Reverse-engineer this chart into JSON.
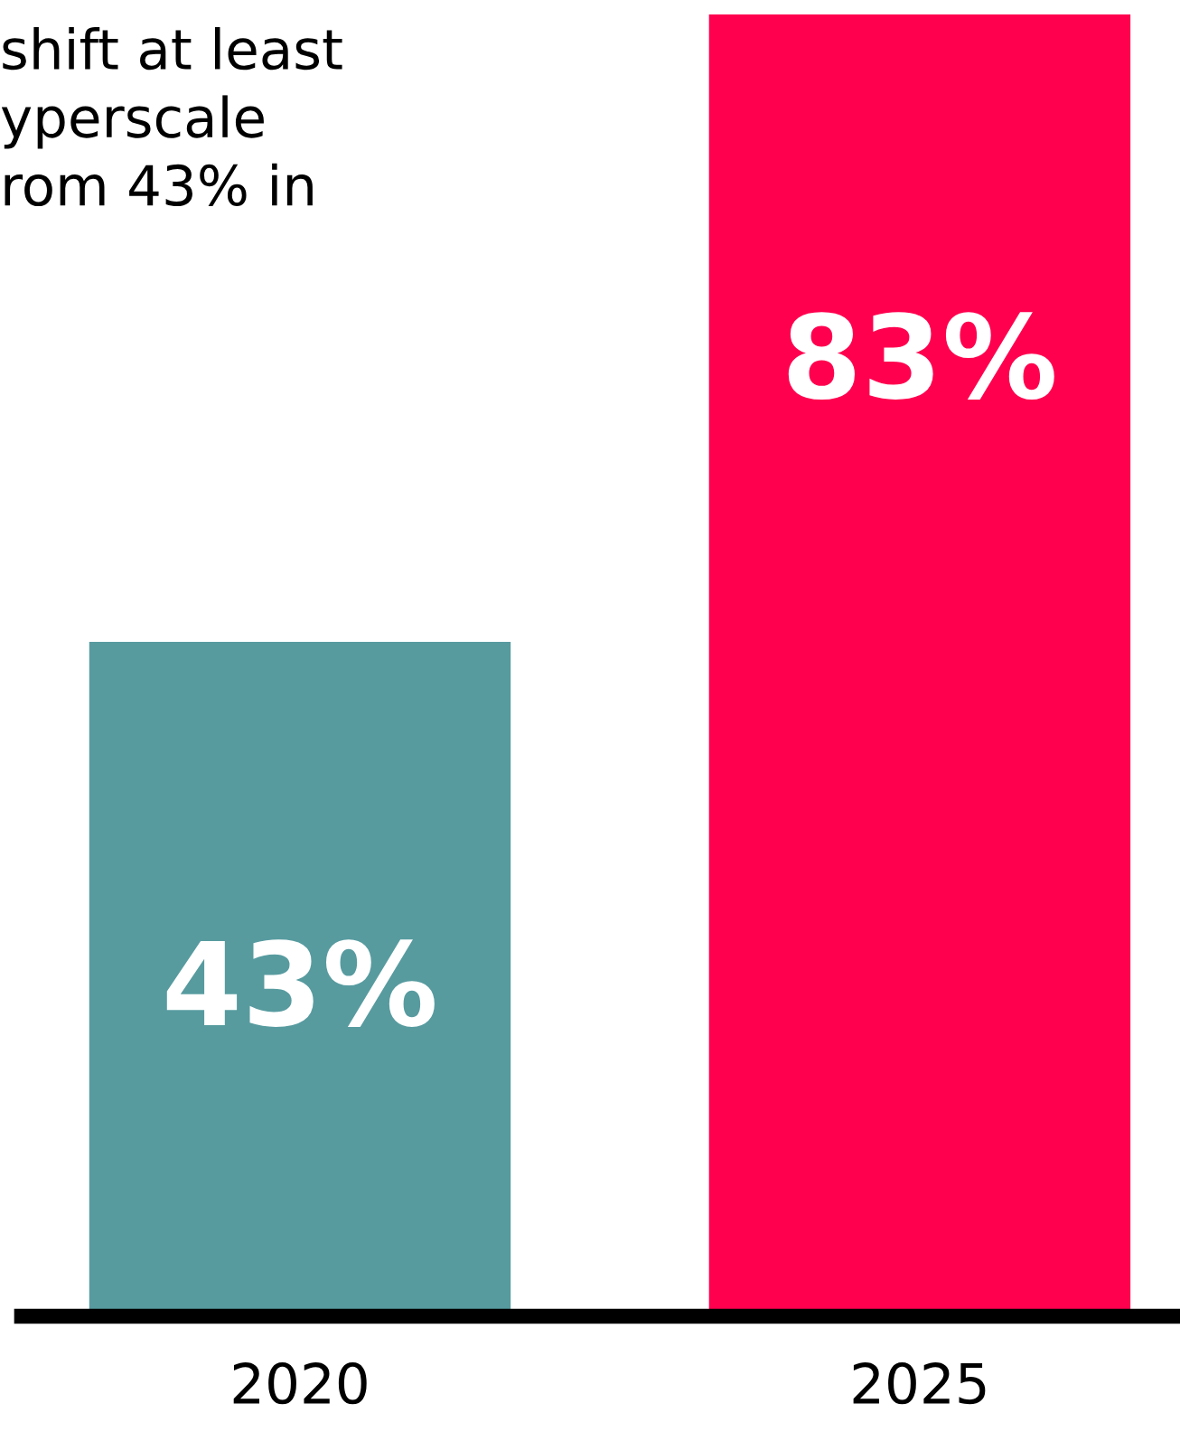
{
  "chart_data": {
    "type": "bar",
    "categories": [
      "2020",
      "2025"
    ],
    "values": [
      43,
      83
    ],
    "colors": [
      "#579b9f",
      "#ff004f"
    ],
    "value_labels": [
      "43%",
      "83%"
    ],
    "annotations": [
      "shift at least\nyperscale\nrom 43% in"
    ]
  }
}
